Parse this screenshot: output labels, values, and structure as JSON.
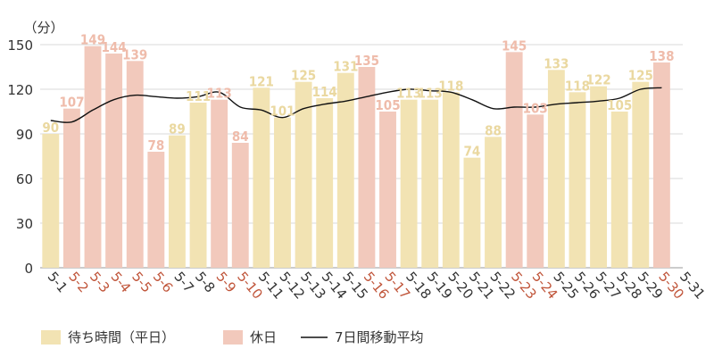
{
  "chart_data": {
    "type": "bar",
    "unit_label": "（分）",
    "ylim": [
      0,
      150
    ],
    "yticks": [
      0,
      30,
      60,
      90,
      120,
      150
    ],
    "grid": true,
    "legend_position": "bottom",
    "colors": {
      "weekday_bar": "#f2e3b3",
      "holiday_bar": "#f2c9bc",
      "weekday_label": "#ead8a0",
      "holiday_label": "#efbcab",
      "holiday_axis_text": "#c0553a",
      "weekday_axis_text": "#333333",
      "moving_average": "#111111",
      "grid": "#d9d9d9"
    },
    "categories": [
      "5-1",
      "5-2",
      "5-3",
      "5-4",
      "5-5",
      "5-6",
      "5-7",
      "5-8",
      "5-9",
      "5-10",
      "5-11",
      "5-12",
      "5-13",
      "5-14",
      "5-15",
      "5-16",
      "5-17",
      "5-18",
      "5-19",
      "5-20",
      "5-21",
      "5-22",
      "5-23",
      "5-24",
      "5-25",
      "5-26",
      "5-27",
      "5-28",
      "5-29",
      "5-30",
      "5-31"
    ],
    "values": [
      90,
      107,
      149,
      144,
      139,
      78,
      89,
      111,
      113,
      84,
      121,
      101,
      125,
      114,
      131,
      135,
      105,
      113,
      113,
      118,
      74,
      88,
      145,
      103,
      133,
      118,
      122,
      105,
      125,
      138,
      null
    ],
    "day_type": [
      "weekday",
      "holiday",
      "holiday",
      "holiday",
      "holiday",
      "holiday",
      "weekday",
      "weekday",
      "holiday",
      "holiday",
      "weekday",
      "weekday",
      "weekday",
      "weekday",
      "weekday",
      "holiday",
      "holiday",
      "weekday",
      "weekday",
      "weekday",
      "weekday",
      "weekday",
      "holiday",
      "holiday",
      "weekday",
      "weekday",
      "weekday",
      "weekday",
      "weekday",
      "holiday",
      "weekday"
    ],
    "moving_average": [
      99,
      98,
      106,
      113,
      116,
      115,
      114,
      115,
      118,
      108,
      106,
      101,
      107,
      110,
      112,
      115,
      118,
      120,
      119,
      118,
      113,
      107,
      108,
      108,
      110,
      111,
      112,
      114,
      120,
      121,
      null
    ],
    "legend": [
      {
        "label": "待ち時間（平日）",
        "type": "weekday_bar"
      },
      {
        "label": "休日",
        "type": "holiday_bar"
      },
      {
        "label": "7日間移動平均",
        "type": "moving_average"
      }
    ]
  }
}
